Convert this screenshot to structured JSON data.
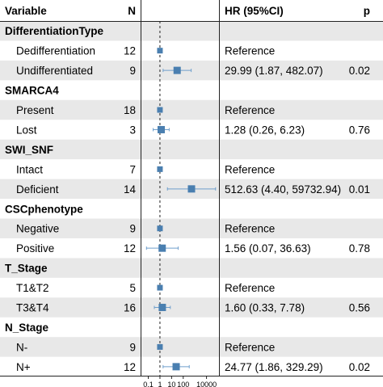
{
  "chart_data": {
    "type": "forest",
    "headers": {
      "variable": "Variable",
      "n": "N",
      "hr": "HR (95%CI)",
      "p": "p"
    },
    "axis": {
      "scale": "log",
      "ticks": [
        0.1,
        1,
        10,
        100,
        10000
      ],
      "tick_labels": [
        "0.1",
        "1",
        "10",
        "100",
        "10000"
      ],
      "reference_line": 1,
      "range": [
        0.03,
        100000
      ]
    },
    "rows": [
      {
        "kind": "group",
        "label": "DifferentiationType"
      },
      {
        "kind": "level",
        "label": "Dedifferentiation",
        "n": "12",
        "hr_text": "Reference",
        "p": "",
        "hr": 1,
        "lo": 1,
        "hi": 1
      },
      {
        "kind": "level",
        "label": "Undifferentiated",
        "n": "9",
        "hr_text": "29.99 (1.87, 482.07)",
        "p": "0.02",
        "hr": 29.99,
        "lo": 1.87,
        "hi": 482.07
      },
      {
        "kind": "group",
        "label": "SMARCA4"
      },
      {
        "kind": "level",
        "label": "Present",
        "n": "18",
        "hr_text": "Reference",
        "p": "",
        "hr": 1,
        "lo": 1,
        "hi": 1
      },
      {
        "kind": "level",
        "label": "Lost",
        "n": "3",
        "hr_text": "1.28 (0.26, 6.23)",
        "p": "0.76",
        "hr": 1.28,
        "lo": 0.26,
        "hi": 6.23
      },
      {
        "kind": "group",
        "label": "SWI_SNF"
      },
      {
        "kind": "level",
        "label": "Intact",
        "n": "7",
        "hr_text": "Reference",
        "p": "",
        "hr": 1,
        "lo": 1,
        "hi": 1
      },
      {
        "kind": "level",
        "label": "Deficient",
        "n": "14",
        "hr_text": "512.63 (4.40, 59732.94)",
        "p": "0.01",
        "hr": 512.63,
        "lo": 4.4,
        "hi": 59732.94
      },
      {
        "kind": "group",
        "label": "CSCphenotype"
      },
      {
        "kind": "level",
        "label": "Negative",
        "n": "9",
        "hr_text": "Reference",
        "p": "",
        "hr": 1,
        "lo": 1,
        "hi": 1
      },
      {
        "kind": "level",
        "label": "Positive",
        "n": "12",
        "hr_text": "1.56 (0.07, 36.63)",
        "p": "0.78",
        "hr": 1.56,
        "lo": 0.07,
        "hi": 36.63
      },
      {
        "kind": "group",
        "label": "T_Stage"
      },
      {
        "kind": "level",
        "label": "T1&T2",
        "n": "5",
        "hr_text": "Reference",
        "p": "",
        "hr": 1,
        "lo": 1,
        "hi": 1
      },
      {
        "kind": "level",
        "label": "T3&T4",
        "n": "16",
        "hr_text": "1.60 (0.33, 7.78)",
        "p": "0.56",
        "hr": 1.6,
        "lo": 0.33,
        "hi": 7.78
      },
      {
        "kind": "group",
        "label": "N_Stage"
      },
      {
        "kind": "level",
        "label": "N-",
        "n": "9",
        "hr_text": "Reference",
        "p": "",
        "hr": 1,
        "lo": 1,
        "hi": 1
      },
      {
        "kind": "level",
        "label": "N+",
        "n": "12",
        "hr_text": "24.77 (1.86, 329.29)",
        "p": "0.02",
        "hr": 24.77,
        "lo": 1.86,
        "hi": 329.29
      }
    ],
    "colors": {
      "marker": "#4a7fb0",
      "whisker": "#6f9fcc",
      "stripe": "#e8e8e8",
      "line": "#222222"
    }
  }
}
